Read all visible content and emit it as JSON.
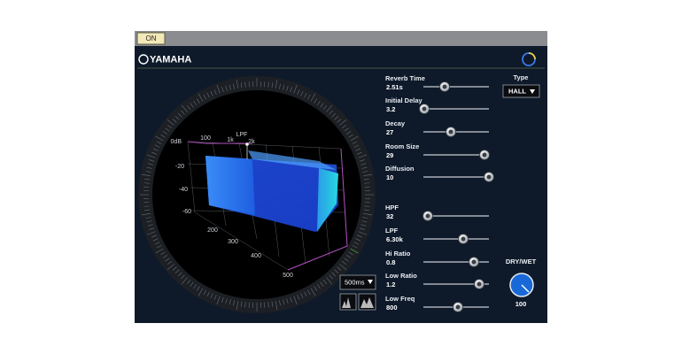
{
  "top_bar": {
    "on_button": "ON"
  },
  "header": {
    "brand": "YAMAHA"
  },
  "display": {
    "level_labels": [
      "0dB",
      "-20",
      "-40",
      "-60"
    ],
    "freq_labels": [
      "100",
      "1k",
      "LPF",
      "2k"
    ],
    "time_labels": [
      "200",
      "300",
      "400",
      "500"
    ],
    "time_range": "500ms"
  },
  "parameters": [
    {
      "label": "Reverb Time",
      "value": "2.51s"
    },
    {
      "label": "Initial Delay",
      "value": "3.2"
    },
    {
      "label": "Decay",
      "value": "27"
    },
    {
      "label": "Room Size",
      "value": "29"
    },
    {
      "label": "Diffusion",
      "value": "10"
    },
    {
      "label": "HPF",
      "value": "32"
    },
    {
      "label": "LPF",
      "value": "6.30k"
    },
    {
      "label": "Hi Ratio",
      "value": "0.8"
    },
    {
      "label": "Low Ratio",
      "value": "1.2"
    },
    {
      "label": "Low Freq",
      "value": "800"
    }
  ],
  "type": {
    "label": "Type",
    "value": "HALL"
  },
  "dry_wet": {
    "label": "DRY/WET",
    "value": "100"
  }
}
